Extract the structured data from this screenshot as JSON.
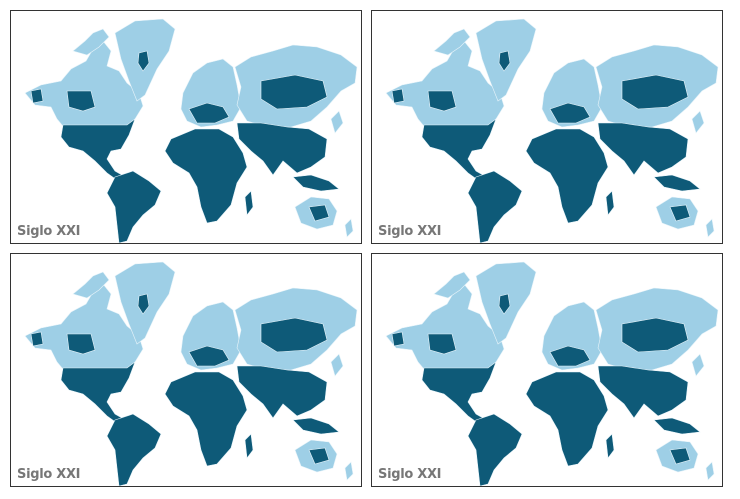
{
  "panels": [
    {
      "label": "Siglo XXI"
    },
    {
      "label": "Siglo XXI"
    },
    {
      "label": "Siglo XXI"
    },
    {
      "label": "Siglo XXI"
    }
  ]
}
